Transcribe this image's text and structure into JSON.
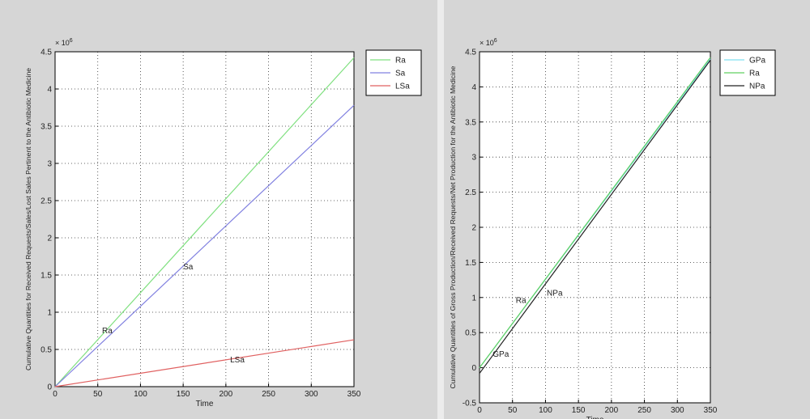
{
  "chart_data": [
    {
      "type": "line",
      "x_label": "Time",
      "y_label": "Cumulative Quantities for Received Requests/Sales/Lost Sales Pertinent to the Antibiotic Medicine",
      "exponent_base": "× 10",
      "exponent": 6,
      "xlim": [
        0,
        350
      ],
      "xticks": [
        0,
        50,
        100,
        150,
        200,
        250,
        300,
        350
      ],
      "ylim": [
        0,
        4.5
      ],
      "yticks": [
        0,
        0.5,
        1,
        1.5,
        2,
        2.5,
        3,
        3.5,
        4,
        4.5
      ],
      "grid": true,
      "legend": "outside-northeast",
      "x": [
        0,
        350
      ],
      "series": [
        {
          "name": "Ra",
          "color": "#7fe07f",
          "values": [
            0,
            4.42
          ]
        },
        {
          "name": "Sa",
          "color": "#8080e0",
          "values": [
            0,
            3.78
          ]
        },
        {
          "name": "LSa",
          "color": "#e06060",
          "values": [
            0,
            0.63
          ]
        }
      ],
      "annotations": [
        {
          "text": "Ra",
          "x": 55,
          "y": 0.76
        },
        {
          "text": "Sa",
          "x": 150,
          "y": 1.62
        },
        {
          "text": "LSa",
          "x": 205,
          "y": 0.37
        }
      ]
    },
    {
      "type": "line",
      "x_label": "Time",
      "y_label": "Cumulative Quantities of Gross Production/Received Requests/Net Production for  the Antibiotic Medicine",
      "exponent_base": "× 10",
      "exponent": 6,
      "xlim": [
        0,
        350
      ],
      "xticks": [
        0,
        50,
        100,
        150,
        200,
        250,
        300,
        350
      ],
      "ylim": [
        -0.5,
        4.5
      ],
      "yticks": [
        -0.5,
        0,
        0.5,
        1,
        1.5,
        2,
        2.5,
        3,
        3.5,
        4,
        4.5
      ],
      "grid": true,
      "legend": "outside-northeast",
      "x": [
        0,
        350
      ],
      "series": [
        {
          "name": "GPa",
          "color": "#80e0f0",
          "values": [
            0,
            4.4
          ]
        },
        {
          "name": "Ra",
          "color": "#60d060",
          "values": [
            0,
            4.42
          ]
        },
        {
          "name": "NPa",
          "color": "#202020",
          "values": [
            -0.08,
            4.38
          ]
        }
      ],
      "annotations": [
        {
          "text": "GPa",
          "x": 20,
          "y": 0.2
        },
        {
          "text": "Ra",
          "x": 55,
          "y": 0.97
        },
        {
          "text": "NPa",
          "x": 102,
          "y": 1.07
        }
      ]
    }
  ]
}
